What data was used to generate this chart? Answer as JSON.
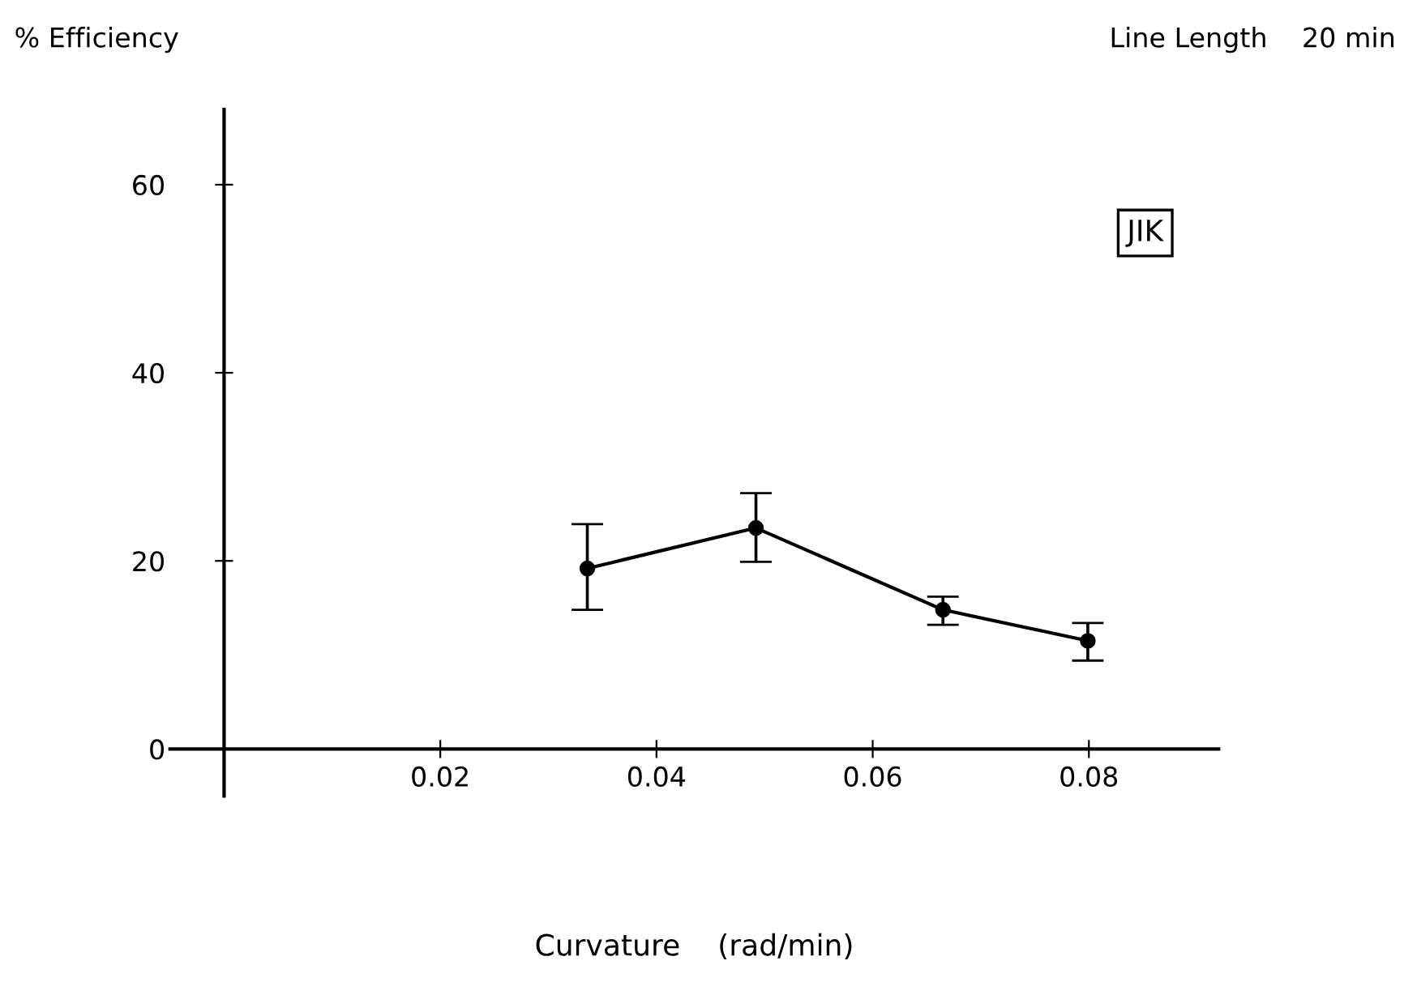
{
  "chart_data": {
    "type": "line",
    "ylabel": "% Efficiency",
    "xlabel": "Curvature    (rad/min)",
    "annotations": [
      "Line Length    20 min",
      "JIK"
    ],
    "x": [
      0.0336,
      0.0492,
      0.0665,
      0.0799
    ],
    "series": [
      {
        "color": "#000000",
        "values": [
          19.2,
          23.5,
          14.8,
          11.5
        ],
        "errors": [
          [
            14.8,
            23.9
          ],
          [
            19.9,
            27.2
          ],
          [
            13.2,
            16.2
          ],
          [
            9.4,
            13.4
          ]
        ]
      }
    ],
    "marker": "circle",
    "line_style": "solid",
    "xlim": [
      -0.005,
      0.092
    ],
    "ylim": [
      -5,
      68
    ],
    "xticks": [
      0.02,
      0.04,
      0.06,
      0.08
    ],
    "yticks": [
      0,
      20,
      40,
      60
    ],
    "grid": false,
    "legend": false
  }
}
